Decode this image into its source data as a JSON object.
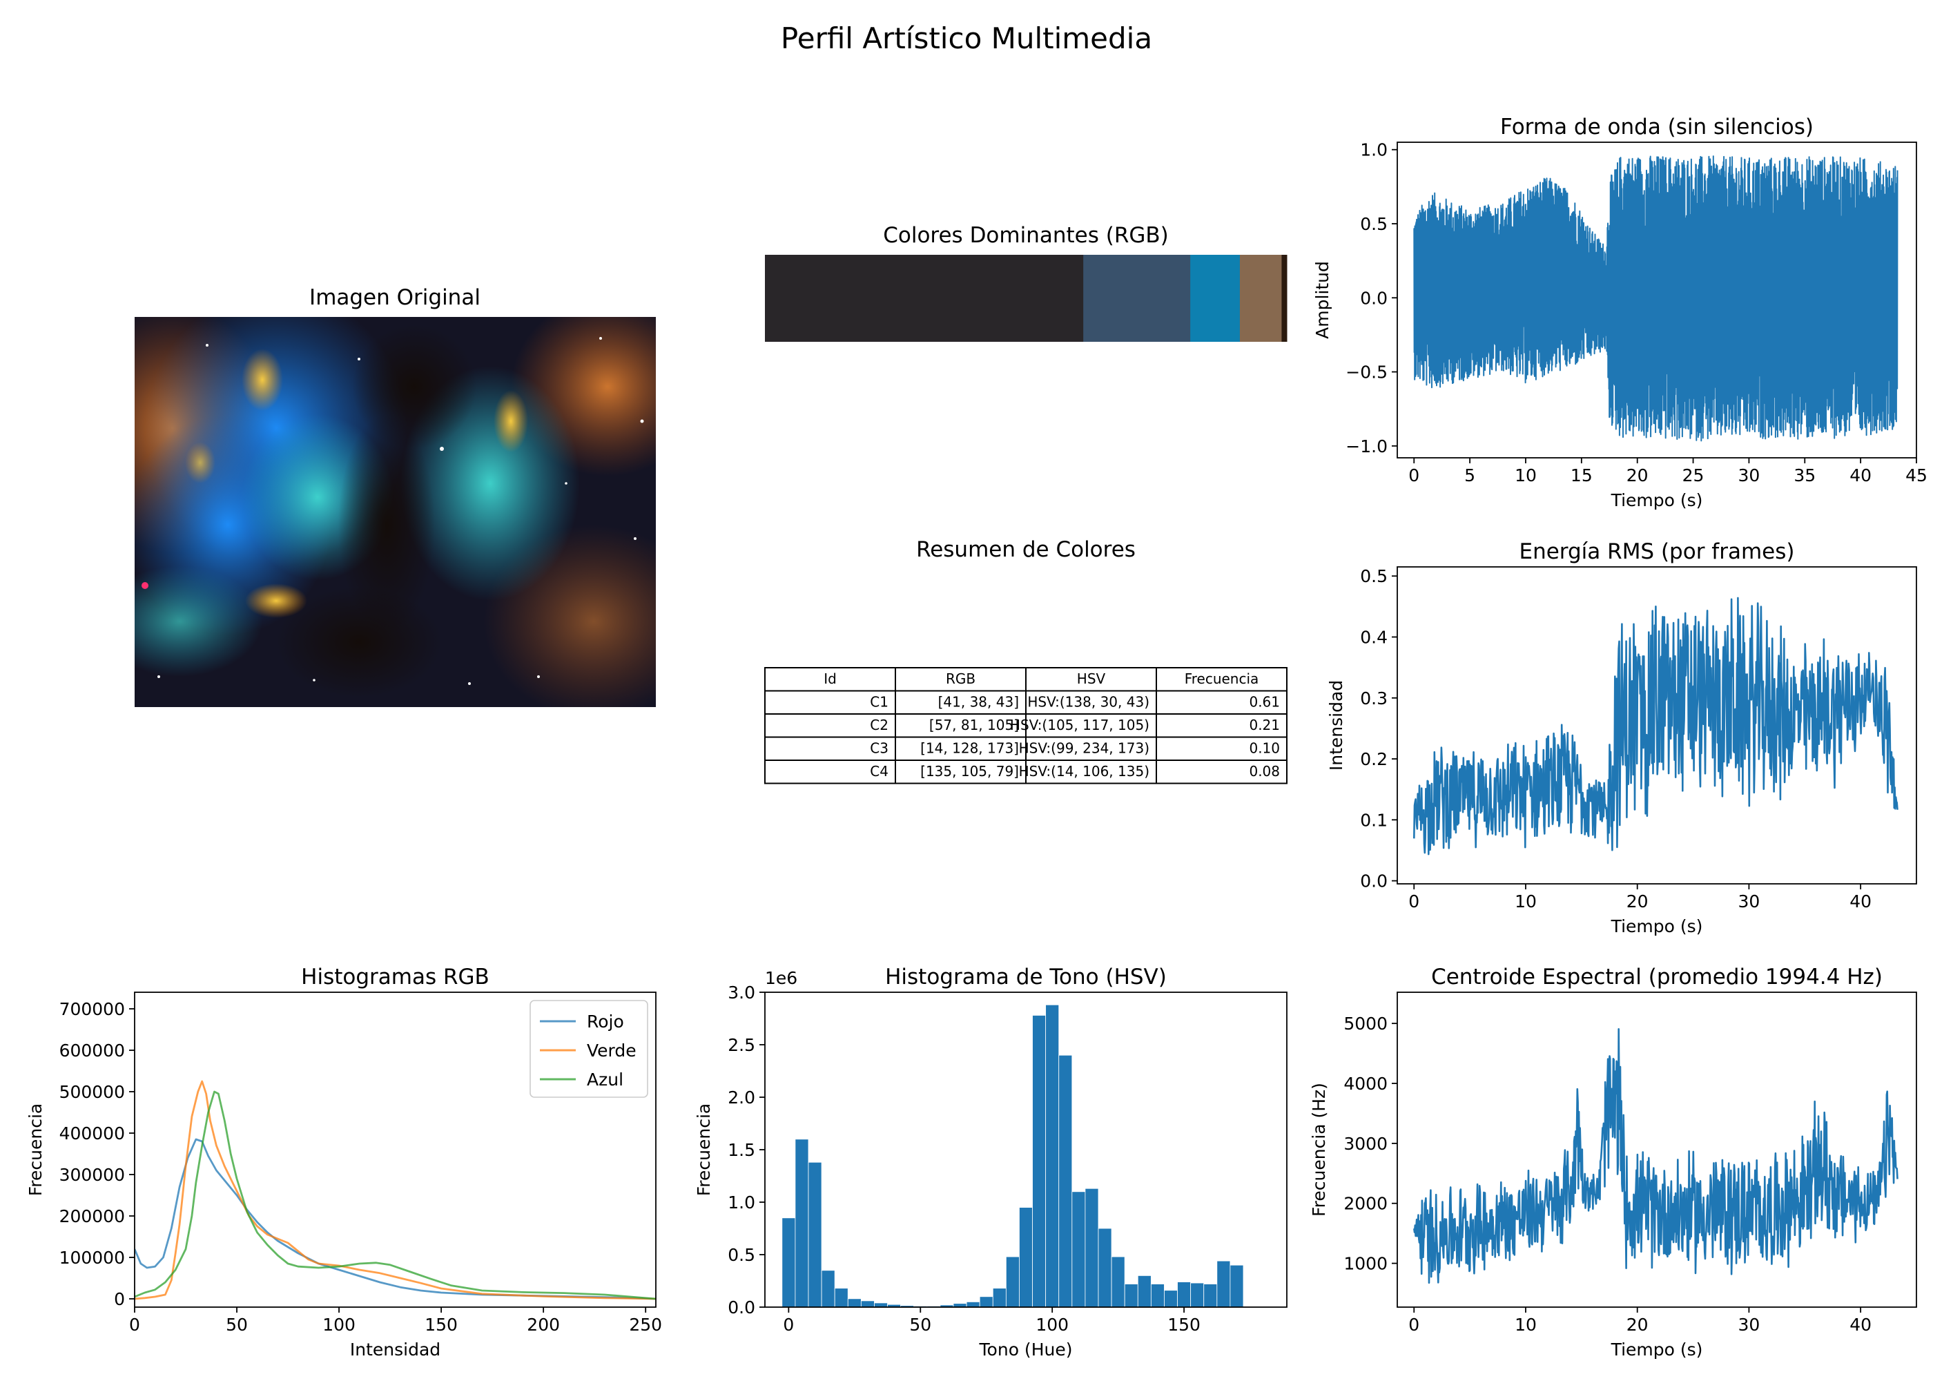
{
  "figure": {
    "title": "Perfil Artístico Multimedia"
  },
  "image_panel": {
    "title": "Imagen Original"
  },
  "dominant_colors": {
    "title": "Colores Dominantes (RGB)",
    "segments": [
      {
        "color": "#292629",
        "fraction": 0.61
      },
      {
        "color": "#39516b",
        "fraction": 0.205
      },
      {
        "color": "#0e80b0",
        "fraction": 0.095
      },
      {
        "color": "#87694f",
        "fraction": 0.08
      },
      {
        "color": "#2b1a0e",
        "fraction": 0.01
      }
    ]
  },
  "color_summary": {
    "title": "Resumen de Colores",
    "headers": [
      "Id",
      "RGB",
      "HSV",
      "Frecuencia"
    ],
    "rows": [
      [
        "C1",
        "[41, 38, 43]",
        "HSV:(138, 30, 43)",
        "0.61"
      ],
      [
        "C2",
        "[57, 81, 105]",
        "HSV:(105, 117, 105)",
        "0.21"
      ],
      [
        "C3",
        "[14, 128, 173]",
        "HSV:(99, 234, 173)",
        "0.10"
      ],
      [
        "C4",
        "[135, 105, 79]",
        "HSV:(14, 106, 135)",
        "0.08"
      ]
    ]
  },
  "chart_data": [
    {
      "type": "line",
      "id": "waveform",
      "title": "Forma de onda (sin silencios)",
      "xlabel": "Tiempo (s)",
      "ylabel": "Amplitud",
      "xlim": [
        -1.5,
        45.0
      ],
      "ylim": [
        -1.08,
        1.05
      ],
      "xticks": [
        0,
        5,
        10,
        15,
        20,
        25,
        30,
        35,
        40,
        45
      ],
      "yticks": [
        -1.0,
        -0.5,
        0.0,
        0.5,
        1.0
      ],
      "ytick_labels": [
        "−1.0",
        "−0.5",
        "0.0",
        "0.5",
        "1.0"
      ],
      "color": "#1f77b4",
      "envelope": [
        {
          "x": 0,
          "low": -0.55,
          "high": 0.55
        },
        {
          "x": 1.5,
          "low": -0.62,
          "high": 0.72
        },
        {
          "x": 5,
          "low": -0.55,
          "high": 0.6
        },
        {
          "x": 8,
          "low": -0.5,
          "high": 0.65
        },
        {
          "x": 10,
          "low": -0.58,
          "high": 0.75
        },
        {
          "x": 12,
          "low": -0.52,
          "high": 0.82
        },
        {
          "x": 14,
          "low": -0.48,
          "high": 0.72
        },
        {
          "x": 16,
          "low": -0.4,
          "high": 0.45
        },
        {
          "x": 17.2,
          "low": -0.35,
          "high": 0.35
        },
        {
          "x": 17.5,
          "low": -0.85,
          "high": 0.8
        },
        {
          "x": 18.5,
          "low": -0.95,
          "high": 0.97
        },
        {
          "x": 25,
          "low": -0.97,
          "high": 0.96
        },
        {
          "x": 30,
          "low": -0.95,
          "high": 0.95
        },
        {
          "x": 35,
          "low": -0.96,
          "high": 0.96
        },
        {
          "x": 40,
          "low": -0.94,
          "high": 0.95
        },
        {
          "x": 43.3,
          "low": -0.88,
          "high": 0.9
        }
      ]
    },
    {
      "type": "line",
      "id": "rms",
      "title": "Energía RMS (por frames)",
      "xlabel": "Tiempo (s)",
      "ylabel": "Intensidad",
      "xlim": [
        -1.5,
        45.0
      ],
      "ylim": [
        -0.005,
        0.515
      ],
      "xticks": [
        0,
        10,
        20,
        30,
        40
      ],
      "yticks": [
        0.0,
        0.1,
        0.2,
        0.3,
        0.4,
        0.5
      ],
      "ytick_labels": [
        "0.0",
        "0.1",
        "0.2",
        "0.3",
        "0.4",
        "0.5"
      ],
      "color": "#1f77b4",
      "envelope": [
        {
          "x": 0,
          "low": 0.03,
          "high": 0.16
        },
        {
          "x": 2,
          "low": 0.04,
          "high": 0.24
        },
        {
          "x": 5,
          "low": 0.05,
          "high": 0.22
        },
        {
          "x": 8,
          "low": 0.05,
          "high": 0.23
        },
        {
          "x": 11,
          "low": 0.05,
          "high": 0.25
        },
        {
          "x": 14,
          "low": 0.06,
          "high": 0.27
        },
        {
          "x": 16,
          "low": 0.06,
          "high": 0.2
        },
        {
          "x": 17.3,
          "low": 0.03,
          "high": 0.17
        },
        {
          "x": 18.0,
          "low": 0.03,
          "high": 0.45
        },
        {
          "x": 22,
          "low": 0.1,
          "high": 0.49
        },
        {
          "x": 26,
          "low": 0.12,
          "high": 0.47
        },
        {
          "x": 30,
          "low": 0.1,
          "high": 0.48
        },
        {
          "x": 33,
          "low": 0.12,
          "high": 0.43
        },
        {
          "x": 34,
          "low": 0.14,
          "high": 0.4
        },
        {
          "x": 38,
          "low": 0.15,
          "high": 0.42
        },
        {
          "x": 40,
          "low": 0.2,
          "high": 0.4
        },
        {
          "x": 41,
          "low": 0.28,
          "high": 0.37
        },
        {
          "x": 42.5,
          "low": 0.1,
          "high": 0.38
        },
        {
          "x": 43.3,
          "low": 0.08,
          "high": 0.12
        }
      ]
    },
    {
      "type": "line",
      "id": "rgb_hist",
      "title": "Histogramas RGB",
      "xlabel": "Intensidad",
      "ylabel": "Frecuencia",
      "xlim": [
        0,
        255
      ],
      "ylim": [
        -20000,
        740000
      ],
      "xticks": [
        0,
        50,
        100,
        150,
        200,
        250
      ],
      "yticks": [
        0,
        100000,
        200000,
        300000,
        400000,
        500000,
        600000,
        700000
      ],
      "ytick_labels": [
        "0",
        "100000",
        "200000",
        "300000",
        "400000",
        "500000",
        "600000",
        "700000"
      ],
      "legend": "top-right",
      "series": [
        {
          "name": "Rojo",
          "color": "#1f77b4",
          "points": [
            [
              0,
              120000
            ],
            [
              3,
              85000
            ],
            [
              6,
              75000
            ],
            [
              10,
              78000
            ],
            [
              14,
              100000
            ],
            [
              18,
              170000
            ],
            [
              22,
              270000
            ],
            [
              26,
              340000
            ],
            [
              30,
              385000
            ],
            [
              33,
              380000
            ],
            [
              36,
              345000
            ],
            [
              40,
              310000
            ],
            [
              45,
              280000
            ],
            [
              50,
              250000
            ],
            [
              55,
              215000
            ],
            [
              60,
              185000
            ],
            [
              65,
              160000
            ],
            [
              70,
              140000
            ],
            [
              75,
              125000
            ],
            [
              80,
              110000
            ],
            [
              90,
              85000
            ],
            [
              100,
              70000
            ],
            [
              110,
              55000
            ],
            [
              120,
              40000
            ],
            [
              130,
              28000
            ],
            [
              140,
              20000
            ],
            [
              150,
              15000
            ],
            [
              170,
              10000
            ],
            [
              200,
              7000
            ],
            [
              230,
              4000
            ],
            [
              255,
              0
            ]
          ]
        },
        {
          "name": "Verde",
          "color": "#ff7f0e",
          "points": [
            [
              0,
              0
            ],
            [
              5,
              2000
            ],
            [
              10,
              5000
            ],
            [
              15,
              10000
            ],
            [
              18,
              45000
            ],
            [
              20,
              110000
            ],
            [
              22,
              180000
            ],
            [
              25,
              320000
            ],
            [
              28,
              440000
            ],
            [
              31,
              500000
            ],
            [
              33,
              525000
            ],
            [
              35,
              495000
            ],
            [
              37,
              430000
            ],
            [
              40,
              370000
            ],
            [
              44,
              320000
            ],
            [
              48,
              280000
            ],
            [
              52,
              240000
            ],
            [
              56,
              200000
            ],
            [
              60,
              175000
            ],
            [
              65,
              155000
            ],
            [
              70,
              145000
            ],
            [
              75,
              135000
            ],
            [
              80,
              115000
            ],
            [
              85,
              95000
            ],
            [
              90,
              85000
            ],
            [
              100,
              80000
            ],
            [
              110,
              70000
            ],
            [
              120,
              62000
            ],
            [
              130,
              50000
            ],
            [
              140,
              38000
            ],
            [
              150,
              25000
            ],
            [
              170,
              12000
            ],
            [
              200,
              6000
            ],
            [
              230,
              2000
            ],
            [
              255,
              0
            ]
          ]
        },
        {
          "name": "Azul",
          "color": "#2ca02c",
          "points": [
            [
              0,
              5000
            ],
            [
              5,
              15000
            ],
            [
              10,
              22000
            ],
            [
              15,
              40000
            ],
            [
              20,
              70000
            ],
            [
              25,
              120000
            ],
            [
              28,
              200000
            ],
            [
              30,
              280000
            ],
            [
              33,
              370000
            ],
            [
              36,
              450000
            ],
            [
              39,
              500000
            ],
            [
              41,
              495000
            ],
            [
              44,
              430000
            ],
            [
              47,
              350000
            ],
            [
              50,
              290000
            ],
            [
              55,
              210000
            ],
            [
              60,
              160000
            ],
            [
              65,
              130000
            ],
            [
              70,
              105000
            ],
            [
              75,
              85000
            ],
            [
              80,
              78000
            ],
            [
              90,
              75000
            ],
            [
              100,
              78000
            ],
            [
              110,
              85000
            ],
            [
              118,
              87000
            ],
            [
              125,
              82000
            ],
            [
              135,
              65000
            ],
            [
              145,
              48000
            ],
            [
              155,
              32000
            ],
            [
              170,
              20000
            ],
            [
              190,
              16000
            ],
            [
              210,
              14000
            ],
            [
              230,
              10000
            ],
            [
              255,
              0
            ]
          ]
        }
      ]
    },
    {
      "type": "bar",
      "id": "hue_hist",
      "title": "Histograma de Tono (HSV)",
      "xlabel": "Tono (Hue)",
      "ylabel": "Frecuencia",
      "multiplier_label": "1e6",
      "xlim": [
        -9,
        189
      ],
      "ylim": [
        0,
        3.0
      ],
      "xticks": [
        0,
        50,
        100,
        150
      ],
      "yticks": [
        0.0,
        0.5,
        1.0,
        1.5,
        2.0,
        2.5,
        3.0
      ],
      "ytick_labels": [
        "0.0",
        "0.5",
        "1.0",
        "1.5",
        "2.0",
        "2.5",
        "3.0"
      ],
      "color": "#1f77b4",
      "bin_edges_start": -2.5,
      "bin_width": 5,
      "values": [
        0.85,
        1.6,
        1.38,
        0.35,
        0.18,
        0.08,
        0.06,
        0.04,
        0.025,
        0.015,
        0.01,
        0.01,
        0.02,
        0.035,
        0.05,
        0.1,
        0.18,
        0.48,
        0.95,
        2.78,
        2.88,
        2.4,
        1.1,
        1.13,
        0.75,
        0.48,
        0.22,
        0.3,
        0.22,
        0.16,
        0.24,
        0.23,
        0.22,
        0.44,
        0.4
      ]
    },
    {
      "type": "line",
      "id": "centroid",
      "title": "Centroide Espectral (promedio 1994.4 Hz)",
      "xlabel": "Tiempo (s)",
      "ylabel": "Frecuencia (Hz)",
      "xlim": [
        -1.5,
        45.0
      ],
      "ylim": [
        270,
        5520
      ],
      "xticks": [
        0,
        10,
        20,
        30,
        40
      ],
      "yticks": [
        1000,
        2000,
        3000,
        4000,
        5000
      ],
      "ytick_labels": [
        "1000",
        "2000",
        "3000",
        "4000",
        "5000"
      ],
      "color": "#1f77b4",
      "envelope": [
        {
          "x": 0,
          "low": 1000,
          "high": 2200
        },
        {
          "x": 1,
          "low": 500,
          "high": 2400
        },
        {
          "x": 4,
          "low": 700,
          "high": 2400
        },
        {
          "x": 7,
          "low": 800,
          "high": 2500
        },
        {
          "x": 10,
          "low": 1000,
          "high": 2600
        },
        {
          "x": 13,
          "low": 1200,
          "high": 2800
        },
        {
          "x": 14.3,
          "low": 1500,
          "high": 3300
        },
        {
          "x": 14.6,
          "low": 2000,
          "high": 4900
        },
        {
          "x": 15.2,
          "low": 1900,
          "high": 2700
        },
        {
          "x": 16.5,
          "low": 1800,
          "high": 2500
        },
        {
          "x": 17.3,
          "low": 2000,
          "high": 5000
        },
        {
          "x": 18.3,
          "low": 2000,
          "high": 5250
        },
        {
          "x": 19.0,
          "low": 900,
          "high": 3000
        },
        {
          "x": 23,
          "low": 800,
          "high": 2900
        },
        {
          "x": 28,
          "low": 700,
          "high": 3000
        },
        {
          "x": 32,
          "low": 800,
          "high": 2900
        },
        {
          "x": 35,
          "low": 1000,
          "high": 3300
        },
        {
          "x": 36.5,
          "low": 1300,
          "high": 4000
        },
        {
          "x": 38,
          "low": 1200,
          "high": 3000
        },
        {
          "x": 40,
          "low": 1300,
          "high": 2800
        },
        {
          "x": 41.5,
          "low": 1500,
          "high": 2500
        },
        {
          "x": 42.6,
          "low": 2000,
          "high": 4450
        },
        {
          "x": 43.3,
          "low": 2200,
          "high": 2600
        }
      ]
    }
  ]
}
